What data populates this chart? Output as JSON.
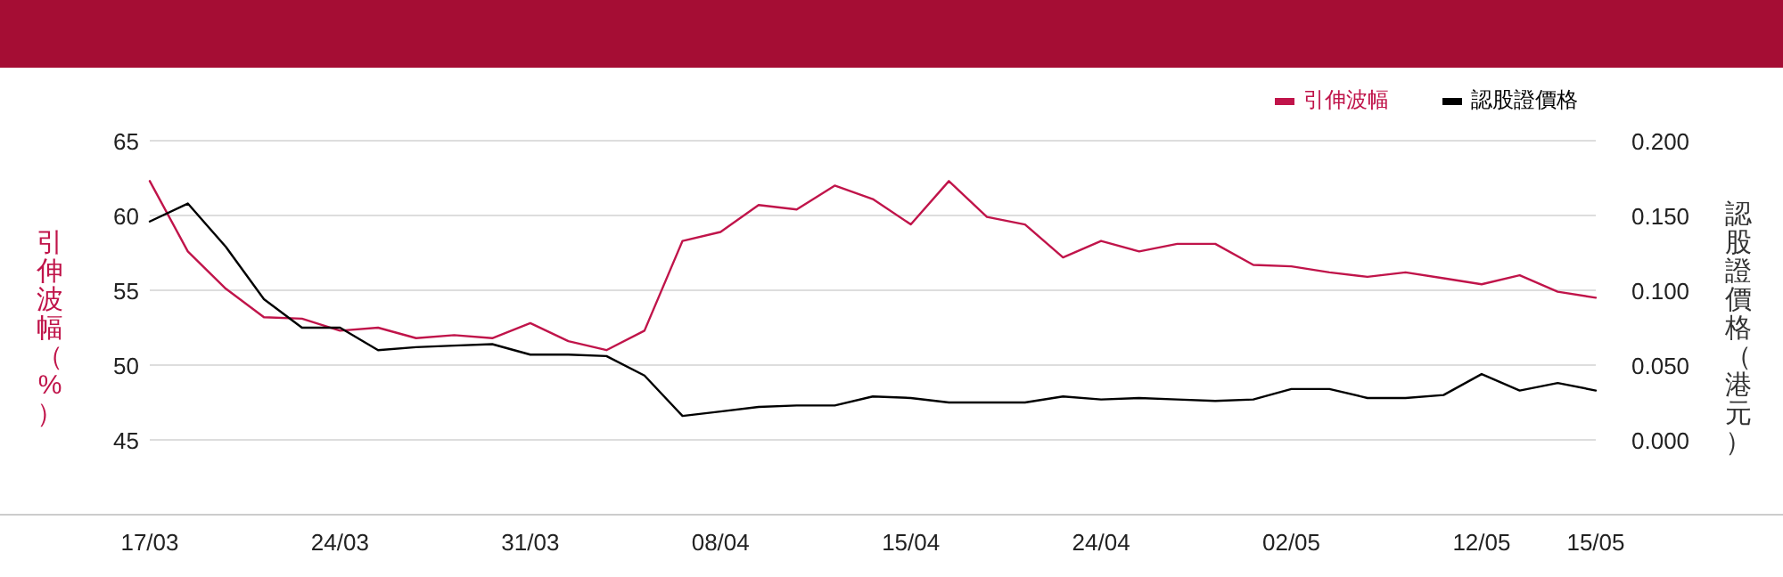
{
  "chart_data": {
    "type": "line",
    "ylabel": "引伸波幅（%）",
    "y2label": "認股證價格（港元）",
    "categories": [
      "17/03",
      null,
      null,
      null,
      null,
      "24/03",
      null,
      null,
      null,
      null,
      "31/03",
      null,
      null,
      null,
      null,
      "08/04",
      null,
      null,
      null,
      null,
      "15/04",
      null,
      null,
      null,
      null,
      "24/04",
      null,
      null,
      null,
      null,
      "02/05",
      null,
      null,
      null,
      null,
      "12/05",
      null,
      null,
      "15/05"
    ],
    "series": [
      {
        "name": "引伸波幅",
        "color": "#c0144a",
        "values": [
          62.3,
          57.6,
          55.1,
          53.2,
          53.1,
          52.3,
          52.5,
          51.8,
          52.0,
          51.8,
          52.8,
          51.6,
          51.0,
          52.3,
          58.3,
          58.9,
          60.7,
          60.4,
          62.0,
          61.1,
          59.4,
          62.3,
          59.9,
          59.4,
          57.2,
          58.3,
          57.6,
          58.1,
          58.1,
          56.7,
          56.6,
          56.2,
          55.9,
          56.2,
          55.8,
          55.4,
          56.0,
          54.9,
          54.5
        ]
      },
      {
        "name": "認股證價格",
        "color": "#000000",
        "axis": "y2",
        "values": [
          0.146,
          0.158,
          0.129,
          0.094,
          0.075,
          0.075,
          0.06,
          0.062,
          0.063,
          0.064,
          0.057,
          0.057,
          0.056,
          0.043,
          0.016,
          0.019,
          0.022,
          0.023,
          0.023,
          0.029,
          0.028,
          0.025,
          0.025,
          0.025,
          0.029,
          0.027,
          0.028,
          0.027,
          0.026,
          0.027,
          0.034,
          0.034,
          0.028,
          0.028,
          0.03,
          0.044,
          0.033,
          0.038,
          0.033
        ]
      }
    ],
    "ylim": [
      40,
      65
    ],
    "yticks": [
      45,
      50,
      55,
      60,
      65
    ],
    "y2lim": [
      -0.05,
      0.2
    ],
    "y2ticks": [
      {
        "value": 0,
        "label": "0.000"
      },
      {
        "value": 0.05,
        "label": "0.050"
      },
      {
        "value": 0.1,
        "label": "0.100"
      },
      {
        "value": 0.15,
        "label": "0.150"
      },
      {
        "value": 0.2,
        "label": "0.200"
      }
    ],
    "grid": "y",
    "legend": "top right",
    "marker": "none",
    "line_style": "solid"
  }
}
